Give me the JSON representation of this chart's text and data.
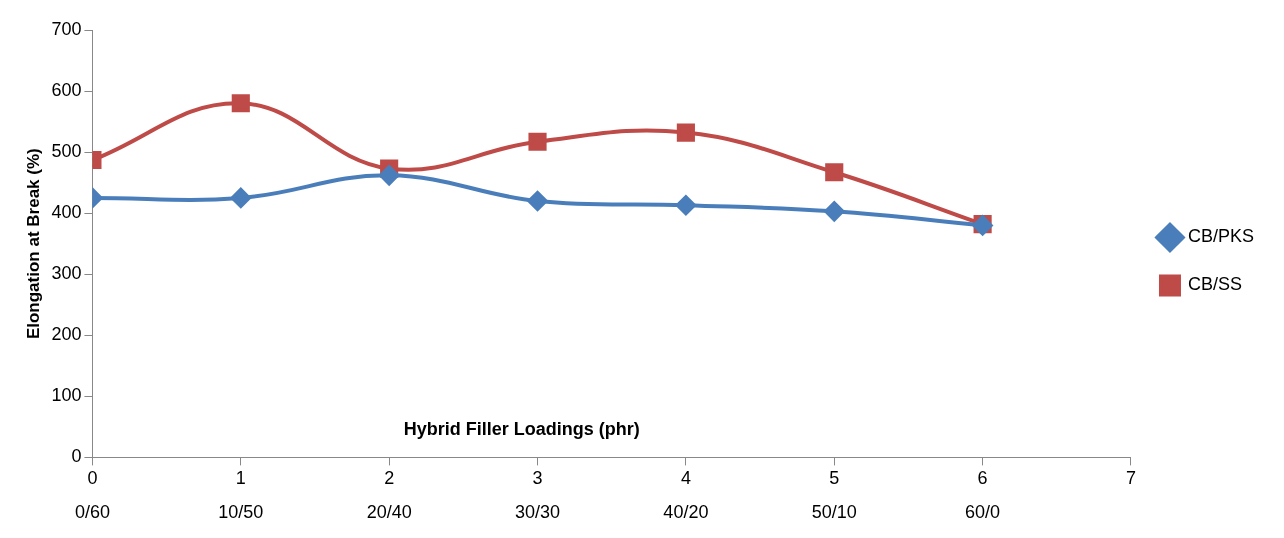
{
  "chart_data": {
    "type": "line",
    "xlabel": "Hybrid Filler Loadings (phr)",
    "ylabel": "Elongation at Break (%)",
    "x": [
      0,
      1,
      2,
      3,
      4,
      5,
      6
    ],
    "series": [
      {
        "name": "CB/PKS",
        "color": "#4a7ebb",
        "marker": "diamond",
        "values": [
          425,
          425,
          462,
          420,
          413,
          403,
          380
        ]
      },
      {
        "name": "CB/SS",
        "color": "#be4b48",
        "marker": "square",
        "values": [
          487,
          580,
          473,
          517,
          532,
          467,
          382
        ]
      }
    ],
    "xlim": [
      0,
      7
    ],
    "xticks": [
      0,
      1,
      2,
      3,
      4,
      5,
      6,
      7
    ],
    "annotations": [
      "0/60",
      "10/50",
      "20/40",
      "30/30",
      "40/20",
      "50/10",
      "60/0"
    ],
    "ylim": [
      0,
      700
    ],
    "yticks": [
      0,
      100,
      200,
      300,
      400,
      500,
      600,
      700
    ],
    "grid": false,
    "legend": "right",
    "line_style": "solid"
  }
}
